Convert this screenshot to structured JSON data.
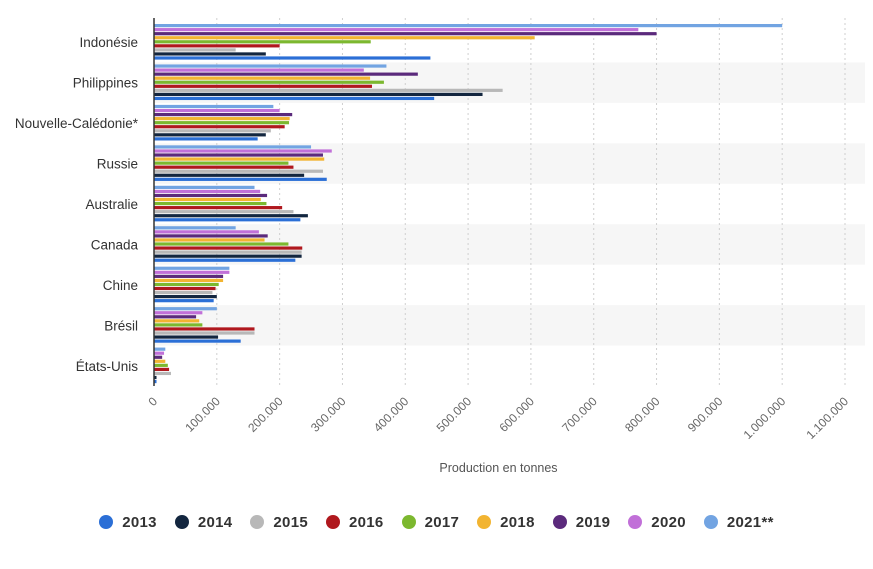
{
  "chart_data": {
    "type": "bar",
    "orientation": "horizontal",
    "categories": [
      "Indonésie",
      "Philippines",
      "Nouvelle-Calédonie*",
      "Russie",
      "Australie",
      "Canada",
      "Chine",
      "Brésil",
      "États-Unis"
    ],
    "series": [
      {
        "name": "2013",
        "color": "#2b6fd6",
        "values": [
          440000,
          446000,
          165000,
          275000,
          233000,
          225000,
          95000,
          138000,
          4000
        ]
      },
      {
        "name": "2014",
        "color": "#13263f",
        "values": [
          178000,
          523000,
          178000,
          239000,
          245000,
          235000,
          100000,
          102000,
          4000
        ]
      },
      {
        "name": "2015",
        "color": "#b8b8b8",
        "values": [
          130000,
          555000,
          186000,
          269000,
          222000,
          235000,
          93000,
          160000,
          27000
        ]
      },
      {
        "name": "2016",
        "color": "#b0181e",
        "values": [
          200000,
          347000,
          208000,
          222000,
          204000,
          236000,
          98000,
          160000,
          24000
        ]
      },
      {
        "name": "2017",
        "color": "#7cb82f",
        "values": [
          345000,
          366000,
          215000,
          214000,
          179000,
          214000,
          103000,
          77000,
          22000
        ]
      },
      {
        "name": "2018",
        "color": "#f2b431",
        "values": [
          606000,
          344000,
          216000,
          271000,
          170000,
          176000,
          110000,
          72000,
          18000
        ]
      },
      {
        "name": "2019",
        "color": "#5b2a7c",
        "values": [
          800000,
          420000,
          220000,
          269000,
          180000,
          181000,
          110000,
          67000,
          13000
        ]
      },
      {
        "name": "2020",
        "color": "#c170d8",
        "values": [
          771000,
          334000,
          200000,
          283000,
          169000,
          167000,
          120000,
          77000,
          16000
        ]
      },
      {
        "name": "2021**",
        "color": "#72a4e2",
        "values": [
          1000000,
          370000,
          190000,
          250000,
          160000,
          130000,
          120000,
          100000,
          18000
        ]
      }
    ],
    "x_ticks": [
      "0",
      "100.000",
      "200.000",
      "300.000",
      "400.000",
      "500.000",
      "600.000",
      "700.000",
      "800.000",
      "900.000",
      "1.000.000",
      "1.100.000"
    ],
    "xlim": [
      0,
      1100000
    ],
    "xlabel": "Production en tonnes",
    "ylabel": "",
    "title": "",
    "grid": "vertical dashed",
    "legend_position": "bottom",
    "band_color": "#f6f6f6"
  }
}
